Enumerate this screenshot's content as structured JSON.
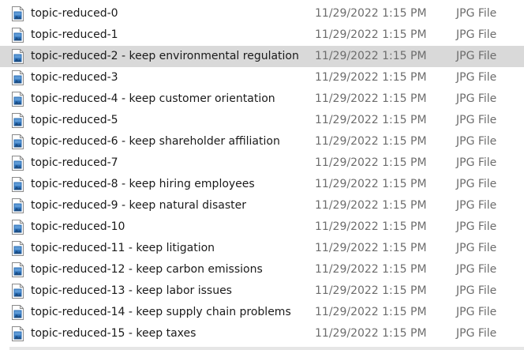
{
  "files": [
    {
      "name": "topic-reduced-0",
      "date": "11/29/2022 1:15 PM",
      "type": "JPG File",
      "icon": "jpg-file-icon"
    },
    {
      "name": "topic-reduced-1",
      "date": "11/29/2022 1:15 PM",
      "type": "JPG File",
      "icon": "jpg-file-icon"
    },
    {
      "name": "topic-reduced-2 - keep environmental regulation",
      "date": "11/29/2022 1:15 PM",
      "type": "JPG File",
      "icon": "jpg-file-icon",
      "selected": true
    },
    {
      "name": "topic-reduced-3",
      "date": "11/29/2022 1:15 PM",
      "type": "JPG File",
      "icon": "jpg-file-icon"
    },
    {
      "name": "topic-reduced-4 - keep customer orientation",
      "date": "11/29/2022 1:15 PM",
      "type": "JPG File",
      "icon": "jpg-file-icon"
    },
    {
      "name": "topic-reduced-5",
      "date": "11/29/2022 1:15 PM",
      "type": "JPG File",
      "icon": "jpg-file-icon"
    },
    {
      "name": "topic-reduced-6 - keep shareholder affiliation",
      "date": "11/29/2022 1:15 PM",
      "type": "JPG File",
      "icon": "jpg-file-icon"
    },
    {
      "name": "topic-reduced-7",
      "date": "11/29/2022 1:15 PM",
      "type": "JPG File",
      "icon": "jpg-file-icon"
    },
    {
      "name": "topic-reduced-8 - keep hiring employees",
      "date": "11/29/2022 1:15 PM",
      "type": "JPG File",
      "icon": "jpg-file-icon"
    },
    {
      "name": "topic-reduced-9 - keep natural disaster",
      "date": "11/29/2022 1:15 PM",
      "type": "JPG File",
      "icon": "jpg-file-icon"
    },
    {
      "name": "topic-reduced-10",
      "date": "11/29/2022 1:15 PM",
      "type": "JPG File",
      "icon": "jpg-file-icon"
    },
    {
      "name": "topic-reduced-11 - keep litigation",
      "date": "11/29/2022 1:15 PM",
      "type": "JPG File",
      "icon": "jpg-file-icon"
    },
    {
      "name": "topic-reduced-12 - keep carbon emissions",
      "date": "11/29/2022 1:15 PM",
      "type": "JPG File",
      "icon": "jpg-file-icon"
    },
    {
      "name": "topic-reduced-13 - keep labor issues",
      "date": "11/29/2022 1:15 PM",
      "type": "JPG File",
      "icon": "jpg-file-icon"
    },
    {
      "name": "topic-reduced-14 - keep supply chain problems",
      "date": "11/29/2022 1:15 PM",
      "type": "JPG File",
      "icon": "jpg-file-icon"
    },
    {
      "name": "topic-reduced-15 - keep taxes",
      "date": "11/29/2022 1:15 PM",
      "type": "JPG File",
      "icon": "jpg-file-icon"
    }
  ],
  "colors": {
    "selected_row_bg": "#d9d9d9",
    "name_text": "#1a1a1a",
    "meta_text": "#6d6d6d",
    "icon_blue": "#2b6fb6"
  }
}
